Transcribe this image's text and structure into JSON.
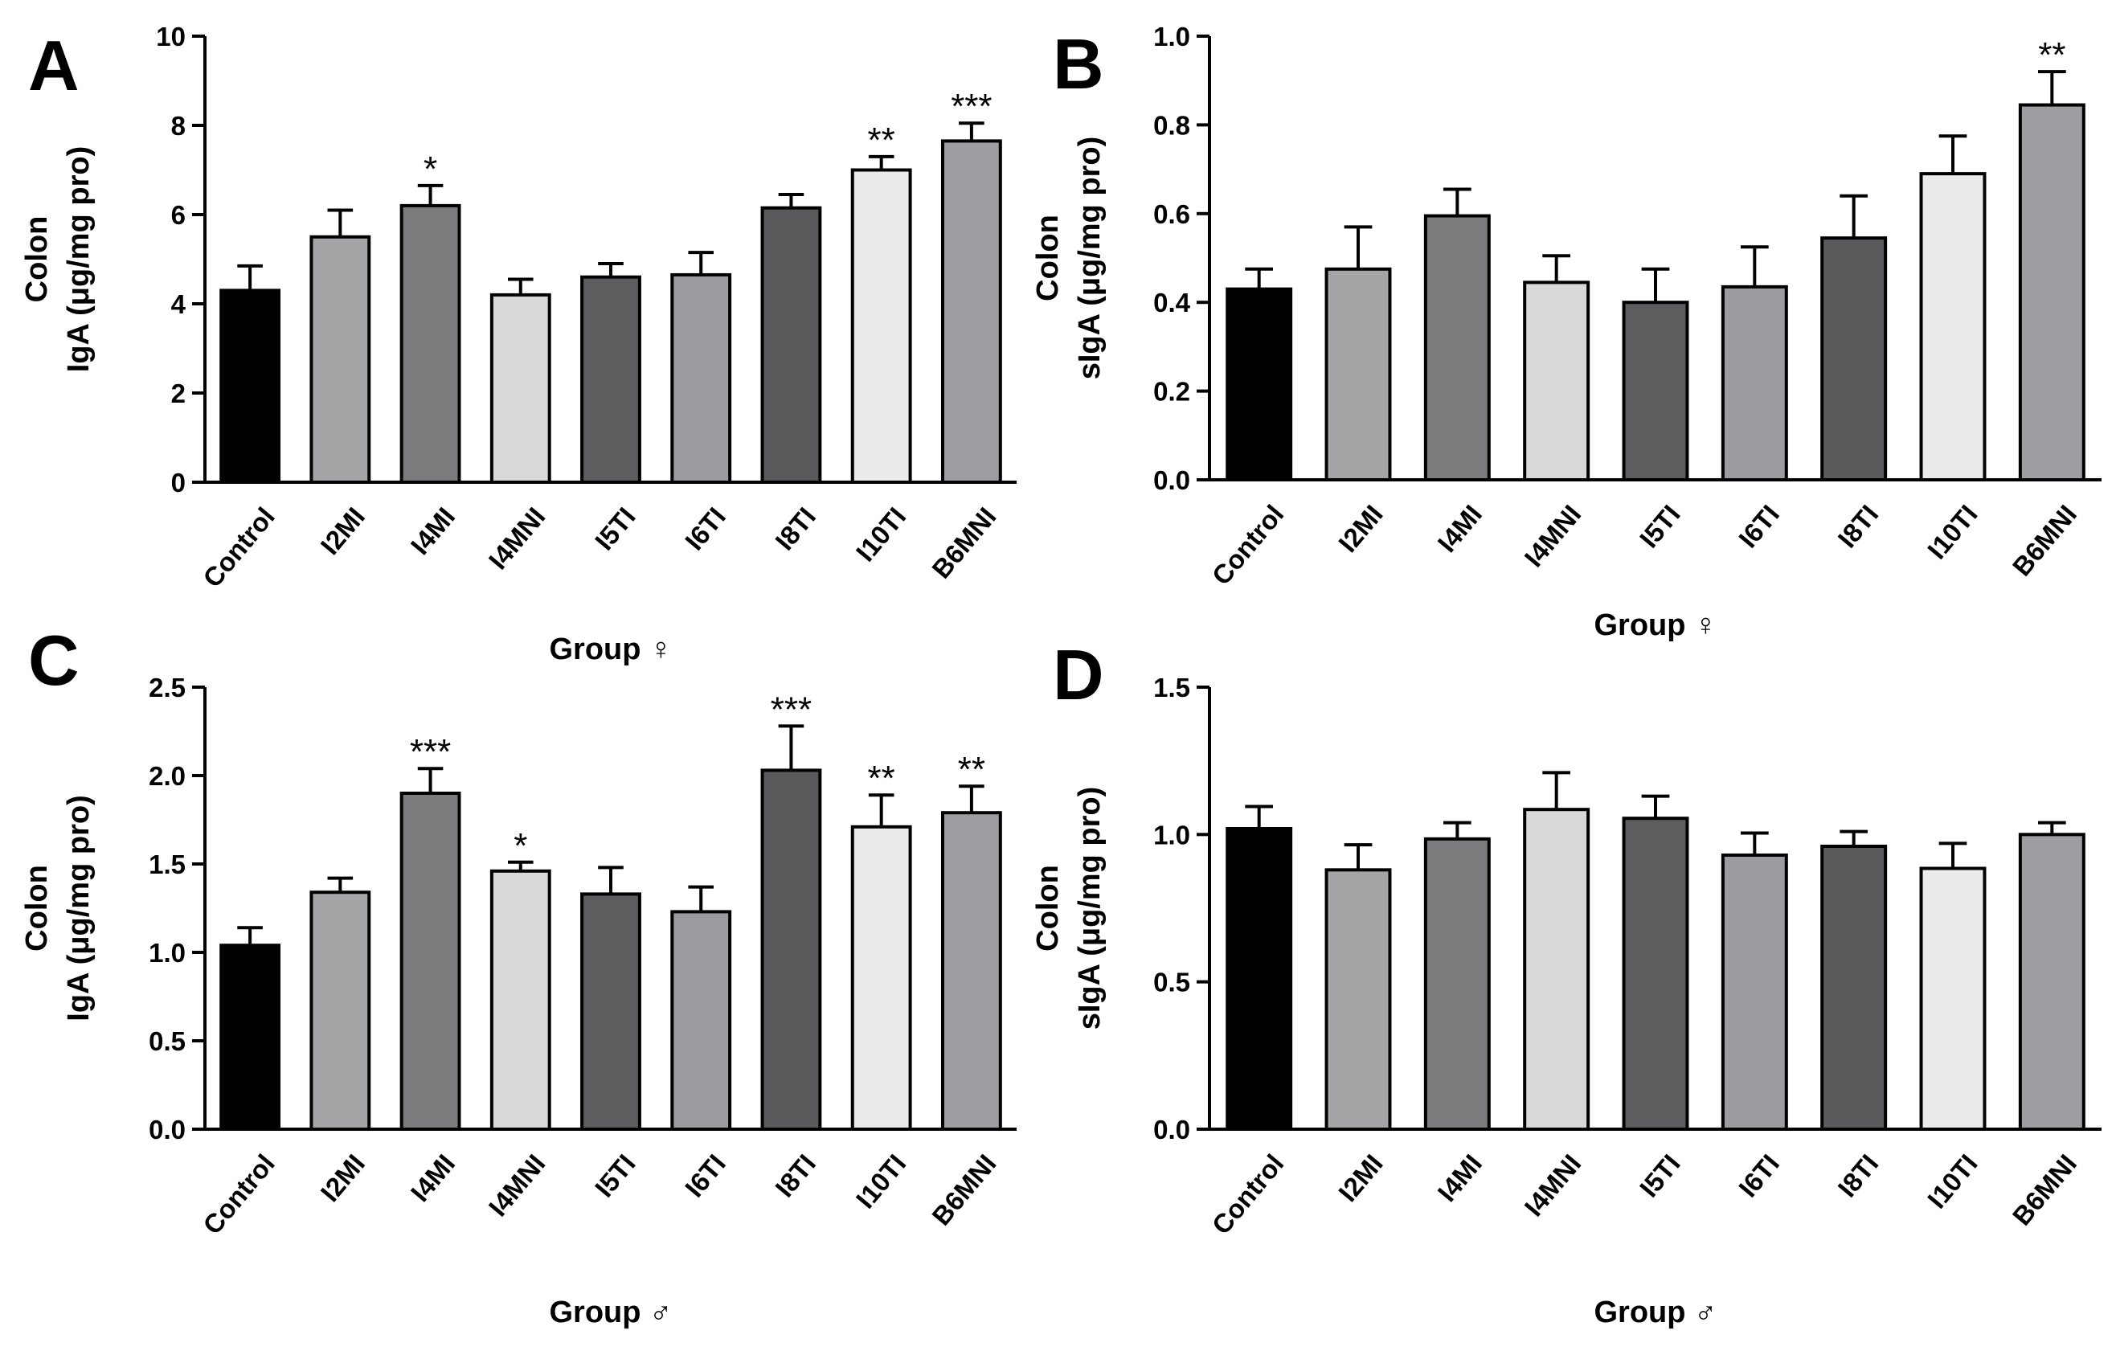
{
  "chart_data": [
    {
      "panel": "A",
      "type": "bar",
      "title": "",
      "ylabel_line1": "Colon",
      "ylabel_line2": "IgA (μg/mg pro)",
      "xlabel": "Group ♀",
      "ylim": [
        0,
        10
      ],
      "yticks": [
        "0",
        "2",
        "4",
        "6",
        "8",
        "10"
      ],
      "categories": [
        "Control",
        "I2MI",
        "I4MI",
        "I4MNI",
        "I5TI",
        "I6TI",
        "I8TI",
        "I10TI",
        "B6MNI"
      ],
      "values": [
        4.3,
        5.5,
        6.2,
        4.2,
        4.6,
        4.65,
        6.15,
        7.0,
        7.65
      ],
      "errors": [
        0.55,
        0.6,
        0.45,
        0.35,
        0.3,
        0.5,
        0.3,
        0.3,
        0.4
      ],
      "significance": [
        "",
        "",
        "*",
        "",
        "",
        "",
        "",
        "**",
        "***"
      ]
    },
    {
      "panel": "B",
      "type": "bar",
      "title": "",
      "ylabel_line1": "Colon",
      "ylabel_line2": "sIgA (μg/mg pro)",
      "xlabel": "Group ♀",
      "ylim": [
        0,
        1.0
      ],
      "yticks": [
        "0.0",
        "0.2",
        "0.4",
        "0.6",
        "0.8",
        "1.0"
      ],
      "categories": [
        "Control",
        "I2MI",
        "I4MI",
        "I4MNI",
        "I5TI",
        "I6TI",
        "I8TI",
        "I10TI",
        "B6MNI"
      ],
      "values": [
        0.43,
        0.475,
        0.595,
        0.445,
        0.4,
        0.435,
        0.545,
        0.69,
        0.845
      ],
      "errors": [
        0.045,
        0.095,
        0.06,
        0.06,
        0.075,
        0.09,
        0.095,
        0.085,
        0.075
      ],
      "significance": [
        "",
        "",
        "",
        "",
        "",
        "",
        "",
        "",
        "**"
      ]
    },
    {
      "panel": "C",
      "type": "bar",
      "title": "",
      "ylabel_line1": "Colon",
      "ylabel_line2": "IgA (μg/mg pro)",
      "xlabel": "Group ♂",
      "ylim": [
        0,
        2.5
      ],
      "yticks": [
        "0.0",
        "0.5",
        "1.0",
        "1.5",
        "2.0",
        "2.5"
      ],
      "categories": [
        "Control",
        "I2MI",
        "I4MI",
        "I4MNI",
        "I5TI",
        "I6TI",
        "I8TI",
        "I10TI",
        "B6MNI"
      ],
      "values": [
        1.04,
        1.34,
        1.9,
        1.46,
        1.33,
        1.23,
        2.03,
        1.71,
        1.79
      ],
      "errors": [
        0.1,
        0.08,
        0.14,
        0.05,
        0.15,
        0.14,
        0.25,
        0.18,
        0.15
      ],
      "significance": [
        "",
        "",
        "***",
        "*",
        "",
        "",
        "***",
        "**",
        "**"
      ]
    },
    {
      "panel": "D",
      "type": "bar",
      "title": "",
      "ylabel_line1": "Colon",
      "ylabel_line2": "sIgA (μg/mg pro)",
      "xlabel": "Group ♂",
      "ylim": [
        0,
        1.5
      ],
      "yticks": [
        "0.0",
        "0.5",
        "1.0",
        "1.5"
      ],
      "categories": [
        "Control",
        "I2MI",
        "I4MI",
        "I4MNI",
        "I5TI",
        "I6TI",
        "I8TI",
        "I10TI",
        "B6MNI"
      ],
      "values": [
        1.02,
        0.88,
        0.985,
        1.085,
        1.055,
        0.93,
        0.96,
        0.885,
        1.0
      ],
      "errors": [
        0.075,
        0.085,
        0.055,
        0.125,
        0.075,
        0.075,
        0.05,
        0.085,
        0.04
      ],
      "significance": [
        "",
        "",
        "",
        "",
        "",
        "",
        "",
        "",
        ""
      ]
    }
  ],
  "bar_colors": [
    "#000000",
    "#a5a5a8",
    "#7c7c7e",
    "#d9d9d9",
    "#5d5d5f",
    "#9c9ca0",
    "#5a5a5c",
    "#ebebeb",
    "#9e9ea2"
  ]
}
